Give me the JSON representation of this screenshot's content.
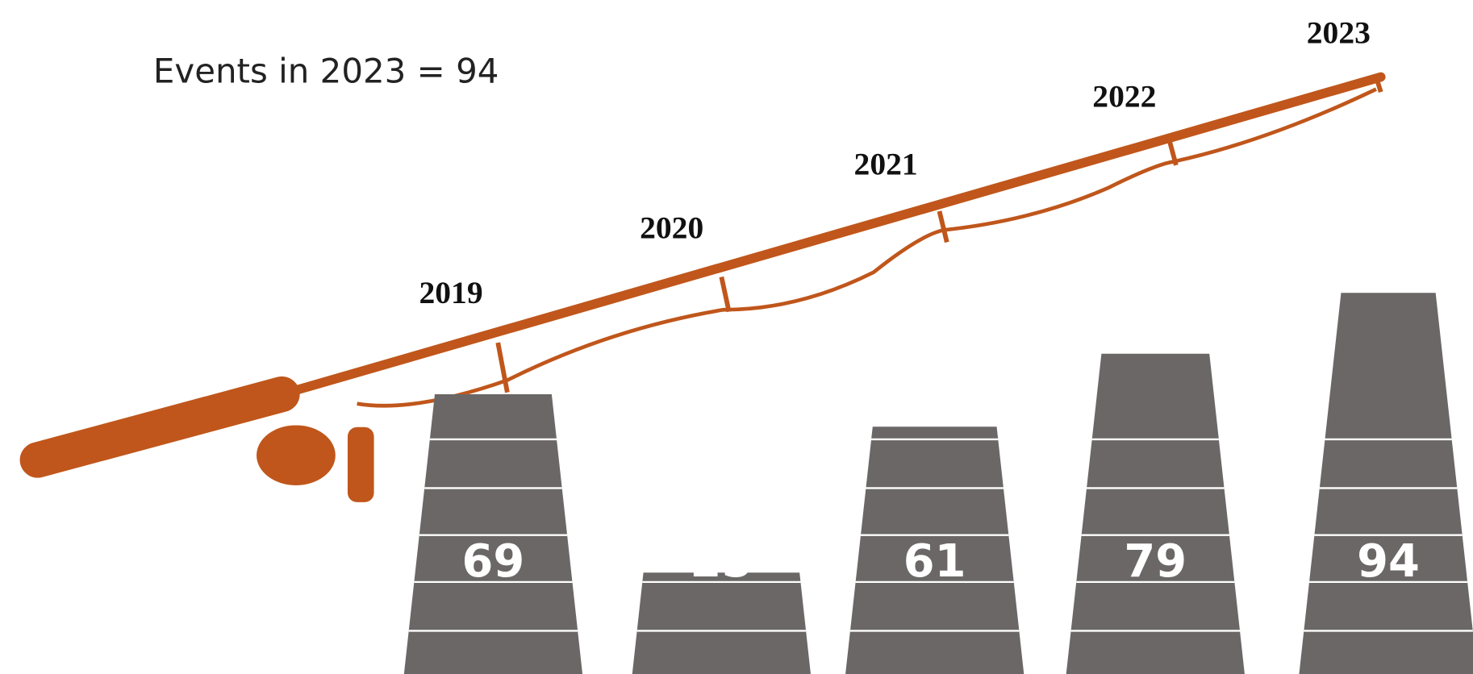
{
  "chart_data": {
    "type": "bar",
    "title": "Events in 2023 = 94",
    "categories": [
      "2019",
      "2020",
      "2021",
      "2022",
      "2023"
    ],
    "values": [
      69,
      25,
      61,
      79,
      94
    ],
    "color": "#6b6767",
    "accent_color": "#c0561b"
  }
}
